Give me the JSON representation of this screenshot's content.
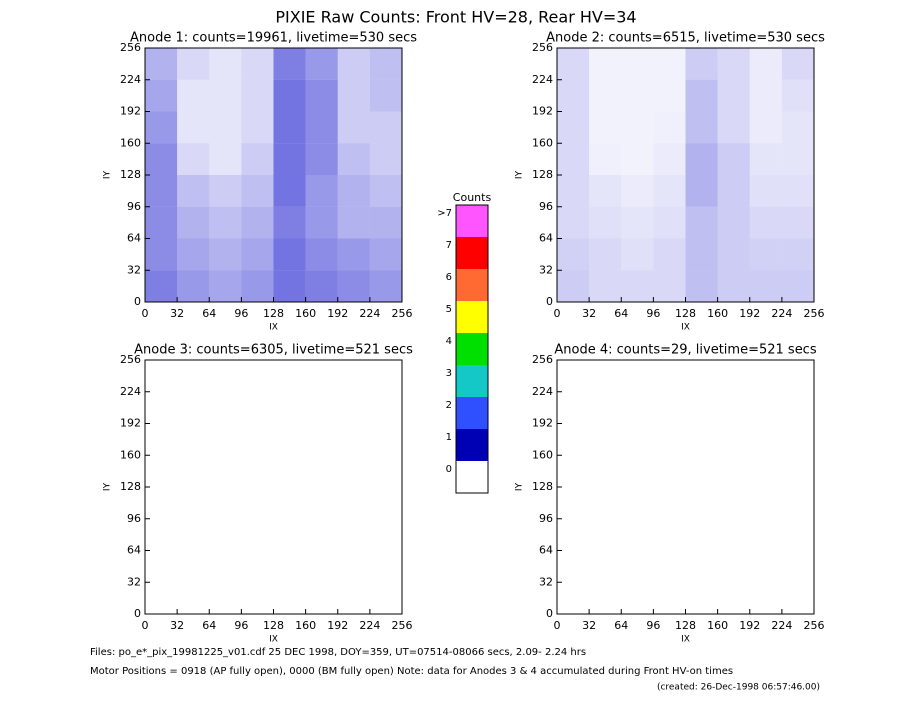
{
  "title": "PIXIE Raw Counts:  Front HV=28, Rear HV=34",
  "chart_data": [
    {
      "type": "heatmap",
      "title": "Anode 1: counts=19961, livetime=530 secs",
      "xlabel": "IX",
      "ylabel": "IY",
      "xlim": [
        0,
        256
      ],
      "ylim": [
        0,
        256
      ],
      "xticks": [
        0,
        32,
        64,
        96,
        128,
        160,
        192,
        224,
        256
      ],
      "yticks": [
        0,
        32,
        64,
        96,
        128,
        160,
        192,
        224,
        256
      ],
      "color": "#0000c8",
      "hit_fraction": [
        [
          0.3,
          0.15,
          0.1,
          0.15,
          0.5,
          0.4,
          0.2,
          0.25
        ],
        [
          0.35,
          0.1,
          0.1,
          0.15,
          0.55,
          0.45,
          0.2,
          0.25
        ],
        [
          0.4,
          0.1,
          0.1,
          0.15,
          0.55,
          0.45,
          0.2,
          0.2
        ],
        [
          0.45,
          0.15,
          0.1,
          0.2,
          0.55,
          0.45,
          0.25,
          0.2
        ],
        [
          0.45,
          0.25,
          0.2,
          0.25,
          0.55,
          0.4,
          0.3,
          0.25
        ],
        [
          0.45,
          0.3,
          0.25,
          0.3,
          0.5,
          0.4,
          0.3,
          0.3
        ],
        [
          0.45,
          0.35,
          0.3,
          0.35,
          0.55,
          0.45,
          0.4,
          0.35
        ],
        [
          0.5,
          0.4,
          0.35,
          0.4,
          0.55,
          0.5,
          0.45,
          0.4
        ]
      ]
    },
    {
      "type": "heatmap",
      "title": "Anode 2: counts=6515, livetime=530 secs",
      "xlabel": "IX",
      "ylabel": "IY",
      "xlim": [
        0,
        256
      ],
      "ylim": [
        0,
        256
      ],
      "xticks": [
        0,
        32,
        64,
        96,
        128,
        160,
        192,
        224,
        256
      ],
      "yticks": [
        0,
        32,
        64,
        96,
        128,
        160,
        192,
        224,
        256
      ],
      "color": "#0000c8",
      "hit_fraction": [
        [
          0.15,
          0.05,
          0.05,
          0.05,
          0.2,
          0.15,
          0.08,
          0.15
        ],
        [
          0.15,
          0.05,
          0.05,
          0.05,
          0.25,
          0.15,
          0.08,
          0.12
        ],
        [
          0.15,
          0.05,
          0.05,
          0.06,
          0.25,
          0.15,
          0.08,
          0.1
        ],
        [
          0.15,
          0.06,
          0.05,
          0.08,
          0.3,
          0.2,
          0.1,
          0.1
        ],
        [
          0.15,
          0.1,
          0.08,
          0.1,
          0.3,
          0.2,
          0.12,
          0.12
        ],
        [
          0.15,
          0.12,
          0.1,
          0.12,
          0.25,
          0.2,
          0.15,
          0.15
        ],
        [
          0.18,
          0.15,
          0.12,
          0.15,
          0.25,
          0.2,
          0.18,
          0.18
        ],
        [
          0.2,
          0.15,
          0.15,
          0.15,
          0.25,
          0.2,
          0.2,
          0.2
        ]
      ]
    },
    {
      "type": "heatmap",
      "title": "Anode 3: counts=6305, livetime=521 secs",
      "xlabel": "IX",
      "ylabel": "IY",
      "xlim": [
        0,
        256
      ],
      "ylim": [
        0,
        256
      ],
      "xticks": [
        0,
        32,
        64,
        96,
        128,
        160,
        192,
        224,
        256
      ],
      "yticks": [
        0,
        32,
        64,
        96,
        128,
        160,
        192,
        224,
        256
      ],
      "color": "#0000c8"
    },
    {
      "type": "heatmap",
      "title": "Anode 4: counts=29, livetime=521 secs",
      "xlabel": "IX",
      "ylabel": "IY",
      "xlim": [
        0,
        256
      ],
      "ylim": [
        0,
        256
      ],
      "xticks": [
        0,
        32,
        64,
        96,
        128,
        160,
        192,
        224,
        256
      ],
      "yticks": [
        0,
        32,
        64,
        96,
        128,
        160,
        192,
        224,
        256
      ],
      "color": "#0000c8"
    }
  ],
  "colorbar": {
    "title": "Counts",
    "labels": [
      "0",
      "1",
      "2",
      "3",
      "4",
      "5",
      "6",
      "7",
      ">7"
    ],
    "colors": [
      "#ffffff",
      "#0000b4",
      "#2f50ff",
      "#14c8c8",
      "#00e000",
      "#ffff00",
      "#ff6a33",
      "#ff0000",
      "#ff55ff"
    ]
  },
  "footer": {
    "line1": "Files: po_e*_pix_19981225_v01.cdf    25 DEC 1998, DOY=359, UT=07514-08066 secs,  2.09- 2.24 hrs",
    "line2": "Motor Positions = 0918 (AP fully open), 0000 (BM fully open)    Note: data for Anodes 3 & 4 accumulated during Front HV-on times",
    "created": "(created: 26-Dec-1998 06:57:46.00)"
  }
}
